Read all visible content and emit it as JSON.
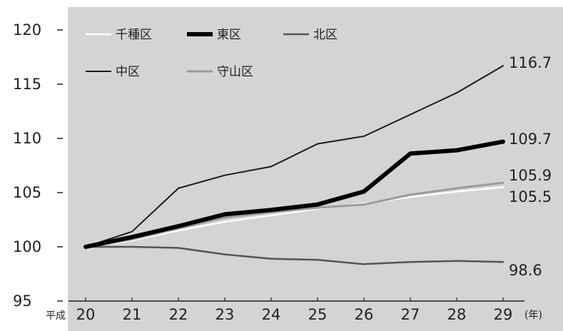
{
  "chart_data": {
    "type": "line",
    "x_prefix": "平成",
    "x_unit": "(年)",
    "categories": [
      "20",
      "21",
      "22",
      "23",
      "24",
      "25",
      "26",
      "27",
      "28",
      "29"
    ],
    "ylim": [
      95,
      120
    ],
    "yticks": [
      "95",
      "100",
      "105",
      "110",
      "115",
      "120"
    ],
    "grid": false,
    "legend_position": "top-left",
    "background": "#d4d4d4",
    "series": [
      {
        "name": "千種区",
        "color": "#ffffff",
        "width": 2.5,
        "values": [
          100,
          100.6,
          101.5,
          102.3,
          102.9,
          103.5,
          104.0,
          104.6,
          105.1,
          105.5
        ],
        "end_label": "105.5"
      },
      {
        "name": "東区",
        "color": "#000000",
        "width": 6,
        "values": [
          100,
          100.9,
          101.9,
          103.0,
          103.4,
          103.9,
          105.1,
          108.6,
          108.9,
          109.7
        ],
        "end_label": "109.7"
      },
      {
        "name": "北区",
        "color": "#555555",
        "width": 2.5,
        "values": [
          100,
          100.0,
          99.9,
          99.3,
          98.9,
          98.8,
          98.4,
          98.6,
          98.7,
          98.6
        ],
        "end_label": "98.6"
      },
      {
        "name": "中区",
        "color": "#1a1a1a",
        "width": 2,
        "values": [
          100,
          101.4,
          105.4,
          106.6,
          107.4,
          109.5,
          110.2,
          112.2,
          114.2,
          116.7
        ],
        "end_label": "116.7"
      },
      {
        "name": "守山区",
        "color": "#9b9b9b",
        "width": 3,
        "values": [
          100,
          100.7,
          101.7,
          102.7,
          103.2,
          103.6,
          103.9,
          104.8,
          105.4,
          105.9
        ],
        "end_label": "105.9"
      }
    ]
  }
}
